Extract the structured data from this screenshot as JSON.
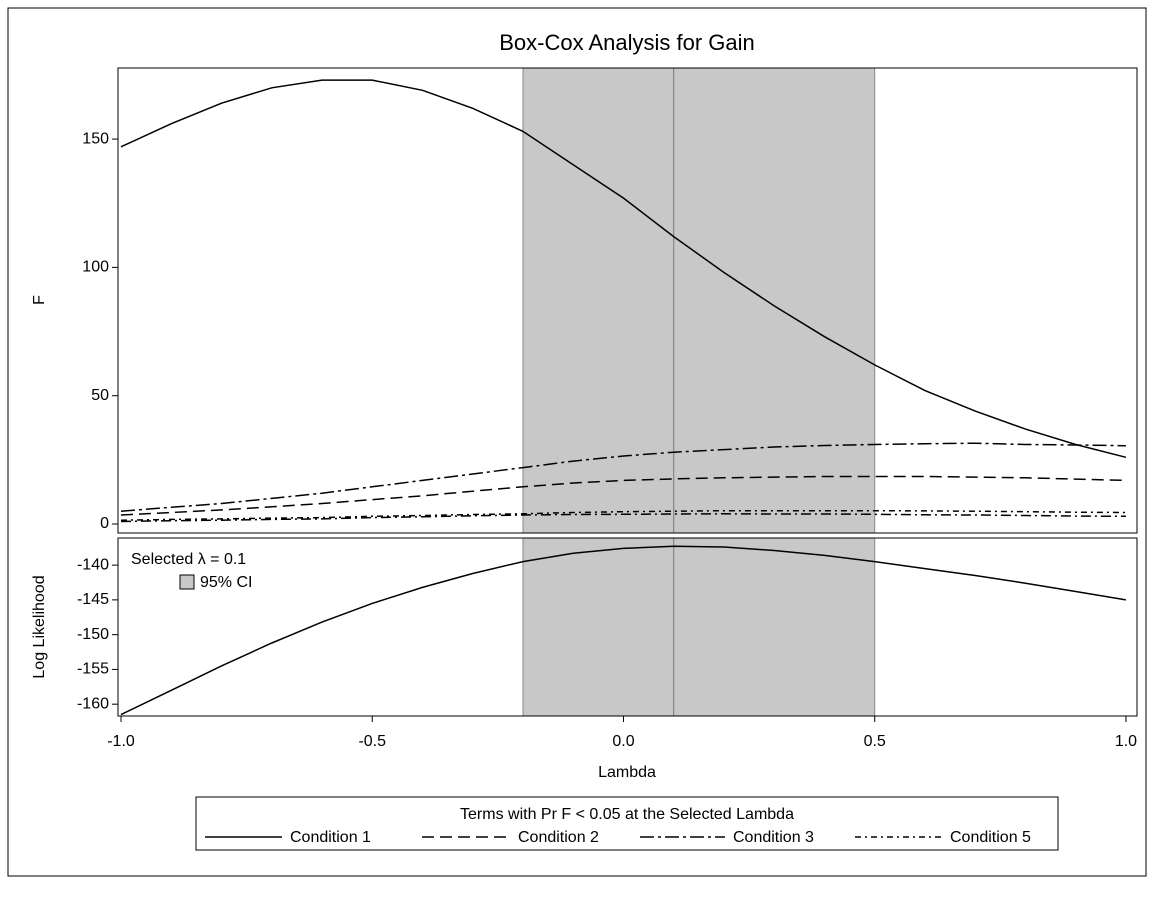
{
  "chart_data": [
    {
      "type": "line",
      "title": "Box-Cox Analysis for Gain",
      "ylabel": "F",
      "x": [
        -1.0,
        -0.9,
        -0.8,
        -0.7,
        -0.6,
        -0.5,
        -0.4,
        -0.3,
        -0.2,
        -0.1,
        0.0,
        0.1,
        0.2,
        0.3,
        0.4,
        0.5,
        0.6,
        0.7,
        0.8,
        0.9,
        1.0
      ],
      "xlim": [
        -1.006,
        1.022
      ],
      "ylim": [
        -3.5,
        177.7
      ],
      "yticks": [
        0,
        50,
        100,
        150
      ],
      "ci": [
        -0.2,
        0.5
      ],
      "selected_lambda": 0.1,
      "legend_title": "Terms with Pr F < 0.05 at the Selected Lambda",
      "series": [
        {
          "name": "Condition 1",
          "color": "#000000",
          "dash": "none",
          "values": [
            147,
            156,
            164,
            170,
            173,
            173,
            169,
            162,
            153,
            140,
            127,
            112,
            98,
            85,
            73,
            62,
            52,
            44,
            37,
            31,
            26
          ]
        },
        {
          "name": "Condition 2",
          "color": "#000000",
          "dash": "12,6",
          "values": [
            3.5,
            4.5,
            5.5,
            6.7,
            8,
            9.5,
            11,
            12.8,
            14.5,
            16,
            17,
            17.6,
            18,
            18.3,
            18.5,
            18.5,
            18.5,
            18.3,
            18,
            17.5,
            17
          ]
        },
        {
          "name": "Condition 3",
          "color": "#000000",
          "dash": "14,4,3,4",
          "values": [
            5,
            6.5,
            8,
            10,
            12,
            14.5,
            17,
            19.5,
            22,
            24.5,
            26.5,
            28,
            29,
            30,
            30.6,
            31,
            31.3,
            31.5,
            31,
            30.8,
            30.5
          ]
        },
        {
          "name": "Condition 5",
          "color": "#000000",
          "dash": "6,4,2,4",
          "values": [
            1.5,
            1.8,
            2,
            2.3,
            2.5,
            3,
            3.3,
            3.7,
            4,
            4.5,
            4.8,
            5,
            5.2,
            5.2,
            5.2,
            5.2,
            5.1,
            5,
            4.8,
            4.6,
            4.5
          ]
        },
        {
          "color": "#000000",
          "dash": "10,4,2,4",
          "values": [
            1,
            1.3,
            1.5,
            1.8,
            2,
            2.5,
            2.8,
            3.2,
            3.5,
            3.7,
            3.8,
            3.9,
            4,
            3.9,
            3.9,
            3.8,
            3.6,
            3.5,
            3.3,
            3.1,
            3
          ]
        }
      ]
    },
    {
      "type": "line",
      "ylabel": "Log Likelihood",
      "xlabel": "Lambda",
      "x": [
        -1.0,
        -0.9,
        -0.8,
        -0.7,
        -0.6,
        -0.5,
        -0.4,
        -0.3,
        -0.2,
        -0.1,
        0.0,
        0.1,
        0.2,
        0.3,
        0.4,
        0.5,
        0.6,
        0.7,
        0.8,
        0.9,
        1.0
      ],
      "xlim": [
        -1.006,
        1.022
      ],
      "xticks": [
        {
          "value": -1,
          "label": "-1.0"
        },
        {
          "value": -0.5,
          "label": "-0.5"
        },
        {
          "value": 0,
          "label": "0.0"
        },
        {
          "value": 0.5,
          "label": "0.5"
        },
        {
          "value": 1,
          "label": "1.0"
        }
      ],
      "ylim": [
        -161.7,
        -136.1
      ],
      "yticks": [
        -160,
        -155,
        -150,
        -145,
        -140
      ],
      "ci": [
        -0.2,
        0.5
      ],
      "selected_lambda": 0.1,
      "annotation": "Selected λ = 0.1",
      "ci_label": "95% CI",
      "ci_color": "#c8c8c8",
      "series": [
        {
          "color": "#000000",
          "dash": "none",
          "values": [
            -161.5,
            -158,
            -154.5,
            -151.2,
            -148.2,
            -145.5,
            -143.2,
            -141.2,
            -139.5,
            -138.3,
            -137.6,
            -137.3,
            -137.4,
            -137.9,
            -138.6,
            -139.5,
            -140.5,
            -141.5,
            -142.6,
            -143.8,
            -145
          ]
        }
      ]
    }
  ]
}
